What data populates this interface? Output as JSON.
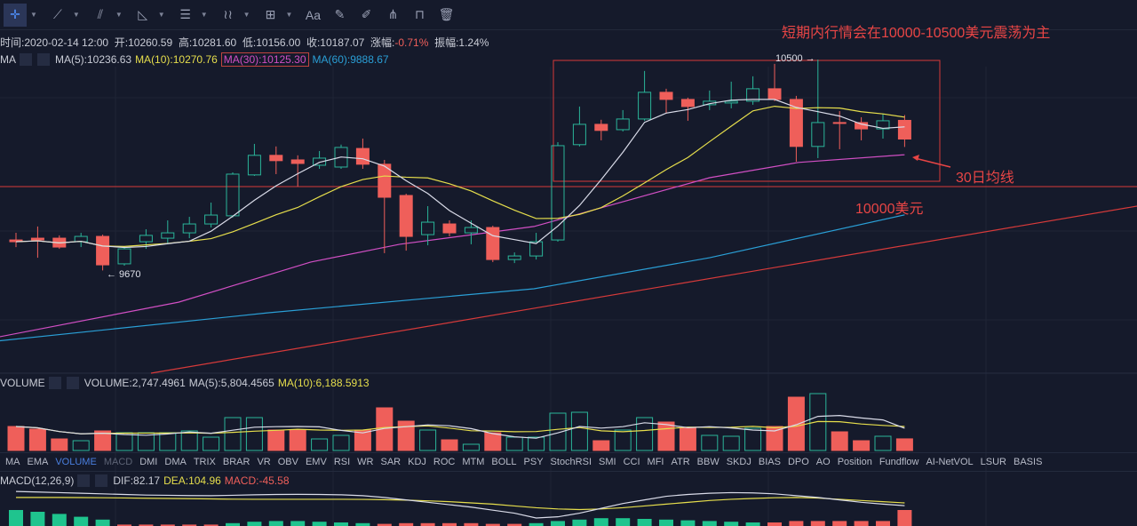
{
  "toolbar": {
    "icons": [
      "crosshair-icon",
      "line-icon",
      "parallel-line-icon",
      "triangle-icon",
      "horizontal-lines-icon",
      "wave-icon",
      "grid-plus-icon",
      "text-icon",
      "ruler-icon",
      "pencil-icon",
      "measure-icon",
      "lock-icon",
      "trash-icon"
    ],
    "text_label": "Aa"
  },
  "info": {
    "time": "时间:2020-02-14 12:00",
    "open": "开:10260.59",
    "high": "高:10281.60",
    "low": "低:10156.00",
    "close": "收:10187.07",
    "change_label": "涨幅:",
    "change": "-0.71%",
    "amp": "振幅:1.24%"
  },
  "ma": {
    "label": "MA",
    "ma5": "MA(5):10236.63",
    "ma10": "MA(10):10270.76",
    "ma30": "MA(30):10125.30",
    "ma60": "MA(60):9888.67"
  },
  "volume_hdr": {
    "label": "VOLUME",
    "vol": "VOLUME:2,747.4961",
    "ma5": "MA(5):5,804.4565",
    "ma10": "MA(10):6,188.5913"
  },
  "macd_hdr": {
    "label": "MACD(12,26,9)",
    "dif": "DIF:82.17",
    "dea": "DEA:104.96",
    "macd": "MACD:-45.58"
  },
  "tabs": [
    "MA",
    "EMA",
    "VOLUME",
    "MACD",
    "DMI",
    "DMA",
    "TRIX",
    "BRAR",
    "VR",
    "OBV",
    "EMV",
    "RSI",
    "WR",
    "SAR",
    "KDJ",
    "ROC",
    "MTM",
    "BOLL",
    "PSY",
    "StochRSI",
    "SMI",
    "CCI",
    "MFI",
    "ATR",
    "BBW",
    "SKDJ",
    "BIAS",
    "DPO",
    "AO",
    "Position",
    "Fundflow",
    "AI-NetVOL",
    "LSUR",
    "BASIS"
  ],
  "active_tab": "VOLUME",
  "annotations": {
    "headline": "短期内行情会在10000-10500美元震荡为主",
    "high_mark": "10500 →",
    "low_mark": "← 9670",
    "ma30_note": "30日均线",
    "level_note": "10000美元"
  },
  "colors": {
    "up": "#2bb59a",
    "down": "#ef5f5a",
    "ma5": "#d9dbe8",
    "ma10": "#e6de4c",
    "ma30": "#d14fc4",
    "ma60": "#2a9fd6",
    "annotation": "#e84545"
  },
  "chart_data": {
    "type": "candlestick",
    "level_line": 10000,
    "candles": [
      [
        9790,
        9783,
        9818,
        9762
      ],
      [
        9797,
        9790,
        9843,
        9720
      ],
      [
        9797,
        9762,
        9808,
        9755
      ],
      [
        9783,
        9804,
        9818,
        9762
      ],
      [
        9804,
        9692,
        9811,
        9670
      ],
      [
        9696,
        9755,
        9762,
        9689
      ],
      [
        9783,
        9808,
        9832,
        9755
      ],
      [
        9797,
        9818,
        9867,
        9773
      ],
      [
        9818,
        9853,
        9881,
        9797
      ],
      [
        9853,
        9888,
        9937,
        9839
      ],
      [
        9885,
        10049,
        10056,
        9878
      ],
      [
        10046,
        10123,
        10168,
        10042
      ],
      [
        10123,
        10102,
        10158,
        10049
      ],
      [
        10105,
        10091,
        10123,
        10000
      ],
      [
        10084,
        10112,
        10140,
        10070
      ],
      [
        10077,
        10154,
        10165,
        10070
      ],
      [
        10150,
        10088,
        10189,
        10070
      ],
      [
        10088,
        9958,
        10105,
        9738
      ],
      [
        9965,
        9804,
        9972,
        9748
      ],
      [
        9811,
        9860,
        9923,
        9769
      ],
      [
        9853,
        9818,
        9867,
        9804
      ],
      [
        9818,
        9839,
        9867,
        9773
      ],
      [
        9839,
        9713,
        9846,
        9703
      ],
      [
        9713,
        9727,
        9741,
        9699
      ],
      [
        9727,
        9783,
        9818,
        9713
      ],
      [
        9790,
        10161,
        10175,
        9783
      ],
      [
        10165,
        10245,
        10315,
        10158
      ],
      [
        10245,
        10221,
        10263,
        10182
      ],
      [
        10224,
        10266,
        10301,
        10217
      ],
      [
        10266,
        10371,
        10455,
        10259
      ],
      [
        10371,
        10343,
        10385,
        10287
      ],
      [
        10343,
        10315,
        10350,
        10259
      ],
      [
        10322,
        10336,
        10378,
        10301
      ],
      [
        10329,
        10336,
        10413,
        10308
      ],
      [
        10336,
        10385,
        10434,
        10322
      ],
      [
        10385,
        10343,
        10483,
        10336
      ],
      [
        10343,
        10158,
        10357,
        10098
      ],
      [
        10158,
        10252,
        10500,
        10112
      ],
      [
        10252,
        10250,
        10297,
        10147
      ],
      [
        10252,
        10227,
        10273,
        10182
      ],
      [
        10227,
        10259,
        10287,
        10189
      ],
      [
        10260.59,
        10187.07,
        10281.6,
        10156
      ]
    ],
    "ma30_points": [
      [
        -1,
        9405
      ],
      [
        7.5,
        9545
      ],
      [
        13.6,
        9703
      ],
      [
        17.7,
        9773
      ],
      [
        23.9,
        9843
      ],
      [
        25.5,
        9881
      ],
      [
        32,
        10035
      ],
      [
        36.1,
        10095
      ],
      [
        41,
        10125.3
      ]
    ],
    "ma60_points": [
      [
        -1,
        9391
      ],
      [
        11.6,
        9503
      ],
      [
        23.9,
        9598
      ],
      [
        32,
        9720
      ],
      [
        41,
        9888.67
      ]
    ],
    "volume": [
      5670,
      5040,
      2730,
      2310,
      4620,
      4200,
      4200,
      4200,
      4620,
      3150,
      7770,
      7770,
      4830,
      4830,
      2730,
      3570,
      4830,
      10080,
      6930,
      4830,
      2520,
      1470,
      4200,
      3150,
      3150,
      8820,
      9030,
      2310,
      4830,
      7770,
      6720,
      5250,
      3570,
      3360,
      5250,
      5670,
      12600,
      13440,
      4410,
      2310,
      3360,
      2747.4961
    ],
    "dif": [
      200,
      195,
      190,
      185,
      180,
      175,
      170,
      168,
      166,
      165,
      168,
      172,
      175,
      176,
      175,
      172,
      165,
      150,
      130,
      110,
      90,
      70,
      45,
      20,
      -20,
      -10,
      20,
      60,
      100,
      130,
      160,
      175,
      185,
      190,
      188,
      180,
      165,
      150,
      130,
      110,
      95,
      82.17
    ],
    "dea": [
      150,
      150,
      150,
      149,
      148,
      146,
      144,
      142,
      140,
      138,
      136,
      135,
      135,
      135,
      135,
      135,
      134,
      132,
      128,
      122,
      115,
      105,
      95,
      80,
      65,
      55,
      50,
      55,
      65,
      80,
      95,
      110,
      125,
      135,
      142,
      148,
      150,
      145,
      135,
      125,
      115,
      104.96
    ],
    "macd_hist": [
      45,
      40,
      34,
      26,
      18,
      -4,
      -4,
      -4,
      -4,
      -4,
      8,
      12,
      14,
      14,
      12,
      10,
      8,
      -6,
      -8,
      -8,
      -8,
      -8,
      -6,
      -6,
      8,
      14,
      18,
      22,
      22,
      20,
      18,
      16,
      14,
      12,
      10,
      -10,
      -14,
      -14,
      -14,
      -14,
      -14,
      -45.58
    ]
  }
}
